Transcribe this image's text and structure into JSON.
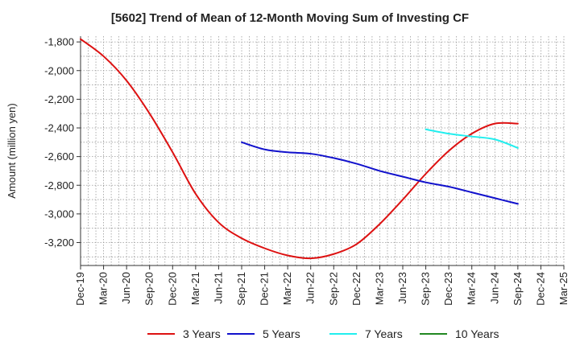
{
  "chart_data": {
    "type": "line",
    "title": "[5602]  Trend of Mean of 12-Month Moving Sum of Investing CF",
    "xlabel": "",
    "ylabel": "Amount (million yen)",
    "ylim": [
      -3360,
      -1760
    ],
    "yticks": [
      "-1,800",
      "-2,000",
      "-2,200",
      "-2,400",
      "-2,600",
      "-2,800",
      "-3,000",
      "-3,200"
    ],
    "ytick_values": [
      -1800,
      -2000,
      -2200,
      -2400,
      -2600,
      -2800,
      -3000,
      -3200
    ],
    "xticks": [
      "Dec-19",
      "Mar-20",
      "Jun-20",
      "Sep-20",
      "Dec-20",
      "Mar-21",
      "Jun-21",
      "Sep-21",
      "Dec-21",
      "Mar-22",
      "Jun-22",
      "Sep-22",
      "Dec-22",
      "Mar-23",
      "Jun-23",
      "Sep-23",
      "Dec-23",
      "Mar-24",
      "Jun-24",
      "Sep-24",
      "Dec-24",
      "Mar-25"
    ],
    "grid": true,
    "legend_position": "bottom",
    "series": [
      {
        "name": "3 Years",
        "color": "#dd1111",
        "x": [
          "Dec-19",
          "Mar-20",
          "Jun-20",
          "Sep-20",
          "Dec-20",
          "Mar-21",
          "Jun-21",
          "Sep-21",
          "Dec-21",
          "Mar-22",
          "Jun-22",
          "Sep-22",
          "Dec-22",
          "Mar-23",
          "Jun-23",
          "Sep-23",
          "Dec-23",
          "Mar-24",
          "Jun-24",
          "Sep-24"
        ],
        "values": [
          -1780,
          -1900,
          -2070,
          -2300,
          -2570,
          -2860,
          -3060,
          -3170,
          -3240,
          -3290,
          -3310,
          -3280,
          -3210,
          -3070,
          -2900,
          -2720,
          -2560,
          -2440,
          -2370,
          -2370
        ]
      },
      {
        "name": "5 Years",
        "color": "#1111cc",
        "x": [
          "Sep-21",
          "Dec-21",
          "Mar-22",
          "Jun-22",
          "Sep-22",
          "Dec-22",
          "Mar-23",
          "Jun-23",
          "Sep-23",
          "Dec-23",
          "Mar-24",
          "Jun-24",
          "Sep-24"
        ],
        "values": [
          -2500,
          -2550,
          -2570,
          -2580,
          -2610,
          -2650,
          -2700,
          -2740,
          -2780,
          -2810,
          -2850,
          -2890,
          -2930
        ]
      },
      {
        "name": "7 Years",
        "color": "#22eeee",
        "x": [
          "Sep-23",
          "Dec-23",
          "Mar-24",
          "Jun-24",
          "Sep-24"
        ],
        "values": [
          -2410,
          -2440,
          -2460,
          -2480,
          -2540
        ]
      },
      {
        "name": "10 Years",
        "color": "#228822",
        "x": [],
        "values": []
      }
    ]
  }
}
